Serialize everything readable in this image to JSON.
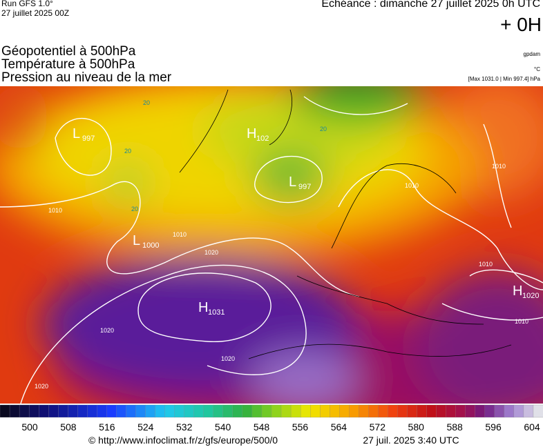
{
  "header": {
    "run": "Run GFS 1.0°",
    "date": "27 juillet 2025 00Z",
    "echeance": "Echéance : dimanche 27 juillet 2025 0h UTC",
    "offset": "+ 0H",
    "titles": [
      "Géopotentiel à 500hPa",
      "Température à 500hPa",
      "Pression au niveau de la mer"
    ],
    "units": [
      "gpdam",
      "°C",
      "[Max 1031.0 | Min 997.4] hPa"
    ]
  },
  "map": {
    "centers": [
      {
        "letter": "L",
        "value": "997"
      },
      {
        "letter": "H",
        "value": "102"
      },
      {
        "letter": "L",
        "value": "997"
      },
      {
        "letter": "L",
        "value": "1000"
      },
      {
        "letter": "H",
        "value": "1031"
      },
      {
        "letter": "H",
        "value": "1020"
      }
    ],
    "isobar_labels": [
      "1010",
      "1010",
      "1020",
      "1020",
      "1020",
      "1020",
      "1010",
      "1010",
      "1010",
      "1010"
    ],
    "temp_labels": [
      "20",
      "20",
      "20",
      "20"
    ]
  },
  "colorbar": {
    "ticks": [
      500,
      508,
      516,
      524,
      532,
      540,
      548,
      556,
      564,
      572,
      580,
      588,
      596,
      604
    ]
  },
  "footer": {
    "url": "© http://www.infoclimat.fr/z/gfs/europe/500/0",
    "time": "27 juil. 2025  3:40 UTC"
  }
}
